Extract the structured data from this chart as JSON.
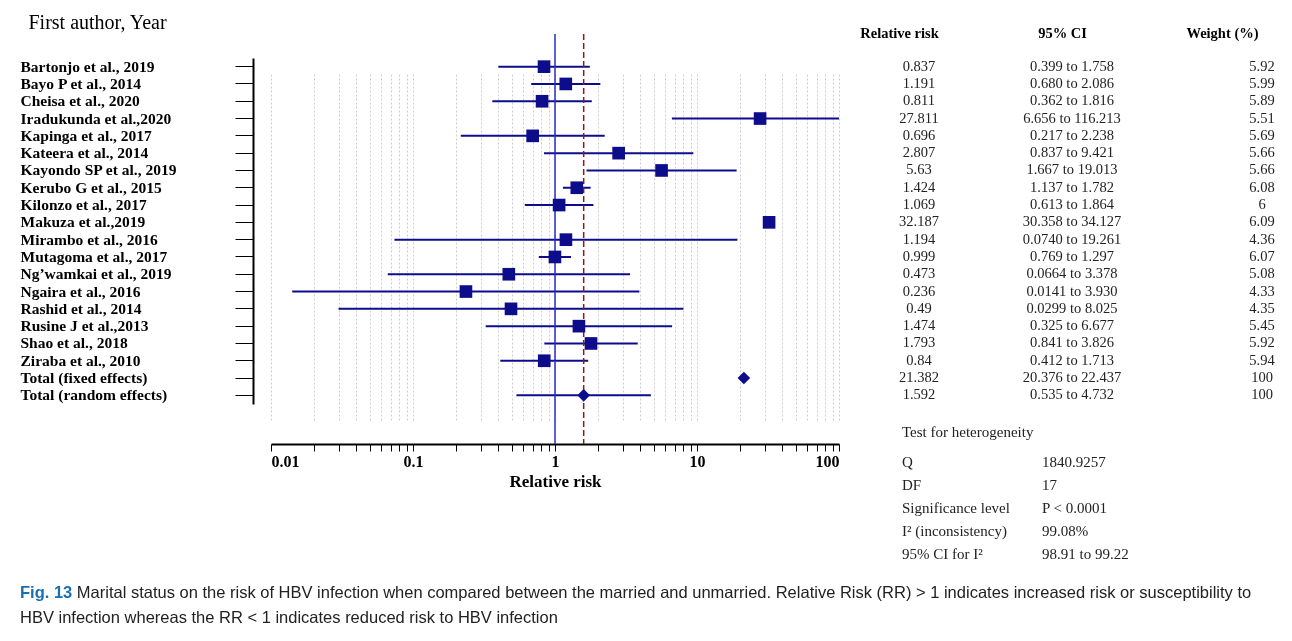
{
  "chart_data": {
    "type": "scatter",
    "orientation": "horizontal",
    "log": "x",
    "grid": "x",
    "marker": "square",
    "xlabel": "Relative risk",
    "ylabel": "First author, Year",
    "categories": [
      "Bartonjo et al., 2019",
      "Bayo P et al., 2014",
      "Cheisa et al., 2020",
      "Iradukunda et al.,2020",
      "Kapinga et al., 2017",
      "Kateera et al., 2014",
      "Kayondo SP et al., 2019",
      "Kerubo G et al., 2015",
      "Kilonzo et al., 2017",
      "Makuza et al.,2019",
      "Mirambo et al., 2016",
      "Mutagoma et al., 2017",
      "Ng’wamkai et al., 2019",
      "Ngaira et al., 2016",
      "Rashid et al., 2014",
      "Rusine J et al.,2013",
      "Shao et al., 2018",
      "Ziraba et al., 2010",
      "Total (fixed effects)",
      "Total (random effects)"
    ],
    "xlim": [
      0.01,
      100
    ],
    "xticks": [
      0.01,
      {
        "value": 0.02,
        "label": null
      },
      {
        "value": 0.03,
        "label": null
      },
      {
        "value": 0.04,
        "label": null
      },
      {
        "value": 0.05,
        "label": null
      },
      {
        "value": 0.06,
        "label": null
      },
      {
        "value": 0.07,
        "label": null
      },
      {
        "value": 0.08,
        "label": null
      },
      {
        "value": 0.09,
        "label": null
      },
      0.1,
      {
        "value": 0.2,
        "label": null
      },
      {
        "value": 0.3,
        "label": null
      },
      {
        "value": 0.4,
        "label": null
      },
      {
        "value": 0.5,
        "label": null
      },
      {
        "value": 0.6,
        "label": null
      },
      {
        "value": 0.7,
        "label": null
      },
      {
        "value": 0.8,
        "label": null
      },
      {
        "value": 0.9,
        "label": null
      },
      1,
      {
        "value": 2,
        "label": null
      },
      {
        "value": 3,
        "label": null
      },
      {
        "value": 4,
        "label": null
      },
      {
        "value": 5,
        "label": null
      },
      {
        "value": 6,
        "label": null
      },
      {
        "value": 7,
        "label": null
      },
      {
        "value": 8,
        "label": null
      },
      {
        "value": 9,
        "label": null
      },
      10,
      {
        "value": 20,
        "label": null
      },
      {
        "value": 30,
        "label": null
      },
      {
        "value": 40,
        "label": null
      },
      {
        "value": 50,
        "label": null
      },
      {
        "value": 60,
        "label": null
      },
      {
        "value": 70,
        "label": null
      },
      {
        "value": 80,
        "label": null
      },
      {
        "value": 90,
        "label": null
      },
      100
    ],
    "series": [
      {
        "color": "#0d0d8c",
        "values": [
          0.837,
          1.191,
          0.811,
          27.811,
          0.696,
          2.807,
          5.63,
          1.424,
          1.069,
          32.187,
          1.194,
          0.999,
          0.473,
          0.236,
          0.49,
          1.474,
          1.793,
          0.84,
          null,
          null
        ],
        "errors": [
          [
            0.399,
            1.758
          ],
          [
            0.68,
            2.086
          ],
          [
            0.362,
            1.816
          ],
          [
            6.656,
            100
          ],
          [
            0.217,
            2.238
          ],
          [
            0.837,
            9.421
          ],
          [
            1.667,
            19.013
          ],
          [
            1.137,
            1.782
          ],
          [
            0.613,
            1.864
          ],
          [
            30.358,
            34.127
          ],
          [
            0.074,
            19.261
          ],
          [
            0.769,
            1.297
          ],
          [
            0.0664,
            3.378
          ],
          [
            0.0141,
            3.93
          ],
          [
            0.0299,
            8.025
          ],
          [
            0.325,
            6.677
          ],
          [
            0.841,
            3.826
          ],
          [
            0.412,
            1.713
          ],
          null,
          null
        ]
      },
      {
        "color": "#0d0d8c",
        "marker": "diamond",
        "values": [
          null,
          null,
          null,
          null,
          null,
          null,
          null,
          null,
          null,
          null,
          null,
          null,
          null,
          null,
          null,
          null,
          null,
          null,
          21.382,
          1.592
        ],
        "errors": [
          null,
          null,
          null,
          null,
          null,
          null,
          null,
          null,
          null,
          null,
          null,
          null,
          null,
          null,
          null,
          null,
          null,
          null,
          [
            20.376,
            22.437
          ],
          [
            0.535,
            4.732
          ]
        ]
      }
    ],
    "ref_lines": [
      {
        "axis": "x",
        "value": 1,
        "color": "#2a2ac8",
        "line_style": "solid"
      },
      {
        "axis": "x",
        "value": 1.592,
        "color": "#8b1a1a",
        "line_style": "dashed"
      }
    ],
    "annotations": [
      "Relative risk",
      "95% CI",
      "Weight (%)",
      "0.837",
      "1.191",
      "0.811",
      "27.811",
      "0.696",
      "2.807",
      "5.63",
      "1.424",
      "1.069",
      "32.187",
      "1.194",
      "0.999",
      "0.473",
      "0.236",
      "0.49",
      "1.474",
      "1.793",
      "0.84",
      "21.382",
      "1.592",
      "0.399 to 1.758",
      "0.680 to 2.086",
      "0.362 to 1.816",
      "6.656 to 116.213",
      "0.217 to 2.238",
      "0.837 to 9.421",
      "1.667 to 19.013",
      "1.137 to 1.782",
      "0.613 to 1.864",
      "30.358 to 34.127",
      "0.0740 to 19.261",
      "0.769 to 1.297",
      "0.0664 to 3.378",
      "0.0141 to 3.930",
      "0.0299 to 8.025",
      "0.325 to 6.677",
      "0.841 to 3.826",
      "0.412 to 1.713",
      "20.376 to 22.437",
      "0.535 to 4.732",
      "5.92",
      "5.99",
      "5.89",
      "5.51",
      "5.69",
      "5.66",
      "5.66",
      "6.08",
      "6",
      "6.09",
      "4.36",
      "6.07",
      "5.08",
      "4.33",
      "4.35",
      "5.45",
      "5.92",
      "5.94",
      "100",
      "100",
      "Test for heterogeneity",
      "Q",
      "1840.9257",
      "DF",
      "17",
      "Significance level",
      "P < 0.0001",
      "I² (inconsistency)",
      "99.08%",
      "95% CI for I²",
      "98.91 to 99.22",
      "Fig. 13 Marital status on the risk of HBV infection when compared between the married and unmarried. Relative Risk (RR) > 1 indicates increased risk or susceptibility to HBV infection whereas the RR < 1 indicates reduced risk to HBV infection"
    ]
  }
}
